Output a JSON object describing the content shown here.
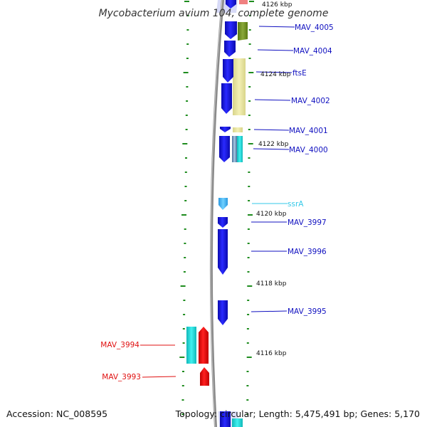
{
  "title": "Mycobacterium avium 104, complete genome",
  "accession_label": "Accession: NC_008595",
  "topology_label": "Topology: circular; Length: 5,475,491 bp; Genes: 5,170",
  "kbp_labels": [
    "4126 kbp",
    "4124 kbp",
    "4122 kbp",
    "4120 kbp",
    "4118 kbp",
    "4116 kbp"
  ],
  "gene_labels": [
    {
      "text": "MAV_4005",
      "color": "#1010c0"
    },
    {
      "text": "MAV_4004",
      "color": "#1010c0"
    },
    {
      "text": "ftsE",
      "color": "#1010c0"
    },
    {
      "text": "MAV_4002",
      "color": "#1010c0"
    },
    {
      "text": "MAV_4001",
      "color": "#1010c0"
    },
    {
      "text": "MAV_4000",
      "color": "#1010c0"
    },
    {
      "text": "ssrA",
      "color": "#33c8e8"
    },
    {
      "text": "MAV_3997",
      "color": "#1010c0"
    },
    {
      "text": "MAV_3996",
      "color": "#1010c0"
    },
    {
      "text": "MAV_3995",
      "color": "#1010c0"
    },
    {
      "text": "MAV_3994",
      "color": "#e01010"
    },
    {
      "text": "MAV_3993",
      "color": "#e01010"
    }
  ],
  "colors": {
    "forward_gene": "#1414f0",
    "reverse_gene": "#ff1010",
    "trna": "#4ab8f4",
    "tick": "#1e8c1e",
    "backbone": "#8a8a8a",
    "olive_feature": "#6e8c1e",
    "khaki_feature": "#e8e49a",
    "cyan_feature": "#18d8d8",
    "pink_feature": "#f08080"
  }
}
